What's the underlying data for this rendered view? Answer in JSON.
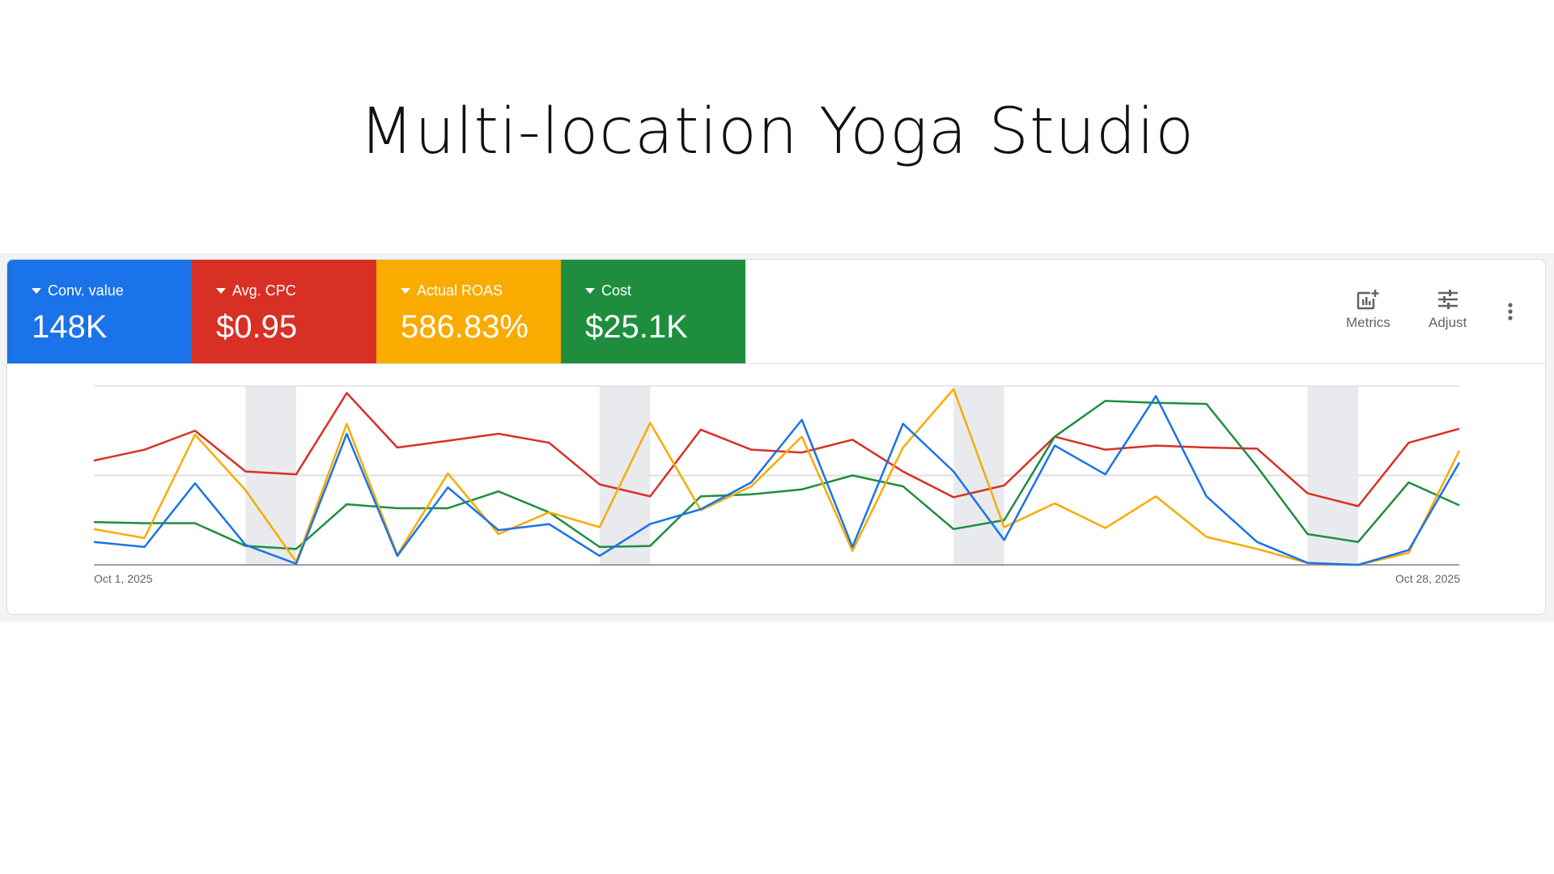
{
  "page_title": "Multi-location Yoga Studio",
  "scorecards": [
    {
      "label": "Conv. value",
      "value": "148K",
      "color": "#1a73e8"
    },
    {
      "label": "Avg. CPC",
      "value": "$0.95",
      "color": "#d93025"
    },
    {
      "label": "Actual ROAS",
      "value": "586.83%",
      "color": "#f9ab00"
    },
    {
      "label": "Cost",
      "value": "$25.1K",
      "color": "#1e8e3e"
    }
  ],
  "toolbar": {
    "metrics_label": "Metrics",
    "adjust_label": "Adjust",
    "metrics_icon": "add-chart-icon",
    "adjust_icon": "tune-icon",
    "more_icon": "more-vert-icon"
  },
  "chart_data": {
    "type": "line",
    "x_start_label": "Oct 1, 2025",
    "x_end_label": "Oct 28, 2025",
    "x": [
      "Oct 1",
      "Oct 2",
      "Oct 3",
      "Oct 4",
      "Oct 5",
      "Oct 6",
      "Oct 7",
      "Oct 8",
      "Oct 9",
      "Oct 10",
      "Oct 11",
      "Oct 12",
      "Oct 13",
      "Oct 14",
      "Oct 15",
      "Oct 16",
      "Oct 17",
      "Oct 18",
      "Oct 19",
      "Oct 20",
      "Oct 21",
      "Oct 22",
      "Oct 23",
      "Oct 24",
      "Oct 25",
      "Oct 26",
      "Oct 27",
      "Oct 28"
    ],
    "weekend_shading": [
      [
        "Oct 4",
        "Oct 5"
      ],
      [
        "Oct 11",
        "Oct 12"
      ],
      [
        "Oct 18",
        "Oct 19"
      ],
      [
        "Oct 25",
        "Oct 26"
      ]
    ],
    "y_axis_labels": "none (each series independently scaled)",
    "ylim": [
      0,
      100
    ],
    "grid": "horizontal",
    "series": [
      {
        "name": "Avg. CPC",
        "color": "#d93025",
        "values": [
          58.3,
          64.4,
          75,
          52.2,
          50.6,
          96.1,
          65.6,
          69.4,
          73.3,
          68.3,
          45,
          38.3,
          75.6,
          64.4,
          62.8,
          70,
          52.2,
          37.8,
          44.4,
          71.7,
          64.4,
          66.7,
          65.6,
          65,
          40,
          32.8,
          68.3,
          76.1
        ]
      },
      {
        "name": "Cost",
        "color": "#1e8e3e",
        "values": [
          23.9,
          23.3,
          23.3,
          10.6,
          8.9,
          33.9,
          31.7,
          31.7,
          41.1,
          29.4,
          10,
          10.6,
          38.3,
          39.4,
          42.2,
          50,
          43.9,
          20,
          25,
          71.7,
          91.7,
          90.6,
          90,
          55,
          17.2,
          12.8,
          46.1,
          33.3
        ]
      },
      {
        "name": "Actual ROAS",
        "color": "#f9ab00",
        "values": [
          20,
          15,
          72.8,
          41.7,
          1.7,
          78.9,
          5.6,
          51.1,
          17.2,
          29.4,
          21.1,
          79.4,
          30.6,
          43.9,
          71.7,
          7.8,
          65.6,
          98.3,
          21.1,
          34.4,
          20.6,
          38.3,
          15.6,
          8.9,
          1.1,
          0,
          6.7,
          63.9
        ]
      },
      {
        "name": "Conv. value",
        "color": "#1a73e8",
        "values": [
          12.8,
          10,
          45.6,
          11.1,
          0.6,
          73.3,
          5,
          43.3,
          19.4,
          22.8,
          5,
          22.8,
          31.1,
          46.1,
          81.1,
          10,
          78.9,
          52.2,
          13.9,
          66.7,
          50.6,
          94.4,
          38.3,
          12.8,
          1.1,
          0,
          8.3,
          57.2
        ]
      }
    ]
  }
}
